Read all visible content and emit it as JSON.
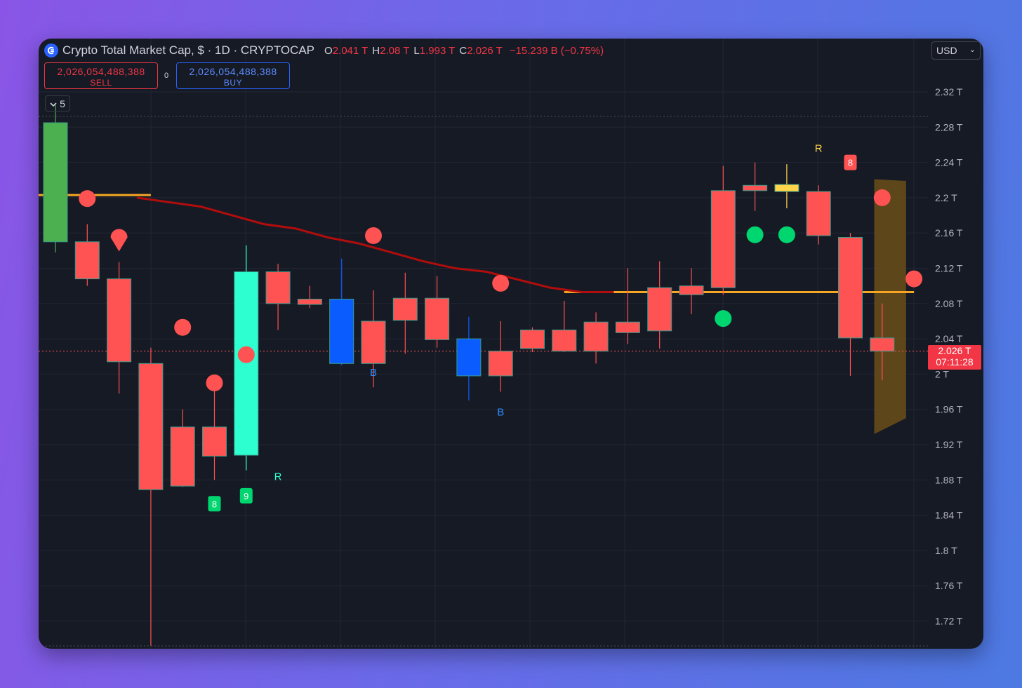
{
  "header": {
    "title": "Crypto Total Market Cap, $ · 1D · CRYPTOCAP",
    "ohlc": [
      {
        "key": "O",
        "value": "2.041 T"
      },
      {
        "key": "H",
        "value": "2.08 T"
      },
      {
        "key": "L",
        "value": "1.993 T"
      },
      {
        "key": "C",
        "value": "2.026 T"
      }
    ],
    "change": "−15.239 B (−0.75%)"
  },
  "currency": "USD",
  "trade": {
    "sell_price": "2,026,054,488,388",
    "sell_label": "SELL",
    "spread": "0",
    "buy_price": "2,026,054,488,388",
    "buy_label": "BUY"
  },
  "indicator_toggle": "5",
  "last_price": {
    "value": "2.026 T",
    "countdown": "07:11:28"
  },
  "colors": {
    "background": "#161a25",
    "bear": "#ff5252",
    "bull_green": "#4caf50",
    "bull_cyan": "#2effd1",
    "blue_candle": "#0a5cff",
    "ma_line": "#b10d0d",
    "level_line": "#f5a623",
    "marker_red": "#ff5252",
    "marker_green": "#00d66f",
    "signal_blue": "#2a8dff",
    "signal_yellow": "#ffd54a",
    "forecast": "#6b4f1a"
  },
  "chart_data": {
    "type": "candlestick",
    "unit": "T",
    "ylim": [
      1.69,
      2.345
    ],
    "y_ticks": [
      "2.32 T",
      "2.28 T",
      "2.24 T",
      "2.2 T",
      "2.16 T",
      "2.12 T",
      "2.08 T",
      "2.04 T",
      "2 T",
      "1.96 T",
      "1.92 T",
      "1.88 T",
      "1.84 T",
      "1.8 T",
      "1.76 T",
      "1.72 T"
    ],
    "y_tick_values": [
      2.32,
      2.28,
      2.24,
      2.2,
      2.16,
      2.12,
      2.08,
      2.04,
      2.0,
      1.96,
      1.92,
      1.88,
      1.84,
      1.8,
      1.76,
      1.72
    ],
    "candles": [
      {
        "o": 2.15,
        "h": 2.305,
        "l": 2.138,
        "c": 2.285,
        "color": "green"
      },
      {
        "o": 2.15,
        "h": 2.17,
        "l": 2.1,
        "c": 2.108,
        "color": "red"
      },
      {
        "o": 2.108,
        "h": 2.127,
        "l": 1.978,
        "c": 2.014,
        "color": "red"
      },
      {
        "o": 2.012,
        "h": 2.03,
        "l": 1.692,
        "c": 1.869,
        "color": "red"
      },
      {
        "o": 1.94,
        "h": 1.96,
        "l": 1.872,
        "c": 1.873,
        "color": "red"
      },
      {
        "o": 1.94,
        "h": 1.99,
        "l": 1.88,
        "c": 1.907,
        "color": "red"
      },
      {
        "o": 1.908,
        "h": 2.146,
        "l": 1.891,
        "c": 2.116,
        "color": "cyan"
      },
      {
        "o": 2.116,
        "h": 2.125,
        "l": 2.05,
        "c": 2.08,
        "color": "red"
      },
      {
        "o": 2.085,
        "h": 2.1,
        "l": 2.075,
        "c": 2.079,
        "color": "red"
      },
      {
        "o": 2.085,
        "h": 2.131,
        "l": 2.01,
        "c": 2.012,
        "color": "blue"
      },
      {
        "o": 2.06,
        "h": 2.095,
        "l": 1.985,
        "c": 2.012,
        "color": "red"
      },
      {
        "o": 2.086,
        "h": 2.115,
        "l": 2.023,
        "c": 2.061,
        "color": "red"
      },
      {
        "o": 2.086,
        "h": 2.111,
        "l": 2.03,
        "c": 2.039,
        "color": "red"
      },
      {
        "o": 2.04,
        "h": 2.065,
        "l": 1.97,
        "c": 1.998,
        "color": "blue"
      },
      {
        "o": 2.026,
        "h": 2.06,
        "l": 1.98,
        "c": 1.998,
        "color": "red"
      },
      {
        "o": 2.05,
        "h": 2.053,
        "l": 2.025,
        "c": 2.029,
        "color": "red"
      },
      {
        "o": 2.05,
        "h": 2.083,
        "l": 2.025,
        "c": 2.026,
        "color": "red"
      },
      {
        "o": 2.059,
        "h": 2.07,
        "l": 2.012,
        "c": 2.026,
        "color": "red"
      },
      {
        "o": 2.059,
        "h": 2.12,
        "l": 2.034,
        "c": 2.047,
        "color": "red"
      },
      {
        "o": 2.098,
        "h": 2.128,
        "l": 2.029,
        "c": 2.049,
        "color": "red"
      },
      {
        "o": 2.1,
        "h": 2.12,
        "l": 2.068,
        "c": 2.09,
        "color": "red"
      },
      {
        "o": 2.208,
        "h": 2.236,
        "l": 2.09,
        "c": 2.098,
        "color": "red"
      },
      {
        "o": 2.214,
        "h": 2.24,
        "l": 2.185,
        "c": 2.208,
        "color": "red"
      },
      {
        "o": 2.215,
        "h": 2.238,
        "l": 2.188,
        "c": 2.207,
        "color": "yellow"
      },
      {
        "o": 2.207,
        "h": 2.214,
        "l": 2.147,
        "c": 2.157,
        "color": "red"
      },
      {
        "o": 2.155,
        "h": 2.16,
        "l": 1.998,
        "c": 2.041,
        "color": "red"
      },
      {
        "o": 2.041,
        "h": 2.08,
        "l": 1.993,
        "c": 2.026,
        "color": "red"
      }
    ],
    "ma_line": [
      [
        3,
        2.2
      ],
      [
        4,
        2.195
      ],
      [
        5,
        2.19
      ],
      [
        6,
        2.18
      ],
      [
        7,
        2.17
      ],
      [
        8,
        2.165
      ],
      [
        9,
        2.155
      ],
      [
        10,
        2.148
      ],
      [
        11,
        2.138
      ],
      [
        12,
        2.128
      ],
      [
        13,
        2.12
      ],
      [
        14,
        2.116
      ],
      [
        15,
        2.107
      ],
      [
        16,
        2.098
      ],
      [
        17,
        2.093
      ],
      [
        18,
        2.093
      ]
    ],
    "level_lines": [
      {
        "value": 2.203,
        "from": 0,
        "to": 3
      },
      {
        "value": 2.093,
        "from": 16,
        "to": 27
      }
    ],
    "markers": [
      {
        "i": 1,
        "v": 2.199,
        "type": "dot",
        "color": "red"
      },
      {
        "i": 2,
        "v": 2.155,
        "type": "pin",
        "color": "red"
      },
      {
        "i": 4,
        "v": 2.053,
        "type": "dot",
        "color": "red"
      },
      {
        "i": 5,
        "v": 1.99,
        "type": "dot",
        "color": "red"
      },
      {
        "i": 6,
        "v": 2.022,
        "type": "dot",
        "color": "red"
      },
      {
        "i": 10,
        "v": 2.157,
        "type": "dot",
        "color": "red"
      },
      {
        "i": 14,
        "v": 2.103,
        "type": "dot",
        "color": "red"
      },
      {
        "i": 22,
        "v": 2.158,
        "type": "dot",
        "color": "green"
      },
      {
        "i": 23,
        "v": 2.158,
        "type": "dot",
        "color": "green"
      },
      {
        "i": 21,
        "v": 2.063,
        "type": "dot",
        "color": "green"
      },
      {
        "i": 26,
        "v": 2.2,
        "type": "dot",
        "color": "red"
      },
      {
        "i": 27,
        "v": 2.108,
        "type": "dot",
        "color": "red"
      }
    ],
    "signals": [
      {
        "i": 7,
        "v": 1.88,
        "text": "R",
        "color": "cyan"
      },
      {
        "i": 10,
        "v": 1.998,
        "text": "B",
        "color": "blue"
      },
      {
        "i": 14,
        "v": 1.953,
        "text": "B",
        "color": "blue"
      },
      {
        "i": 24,
        "v": 2.252,
        "text": "R",
        "color": "yellow"
      }
    ],
    "count_badges": [
      {
        "i": 5,
        "v": 1.853,
        "text": "8",
        "color": "green"
      },
      {
        "i": 6,
        "v": 1.862,
        "text": "9",
        "color": "green"
      },
      {
        "i": 25,
        "v": 2.24,
        "text": "8",
        "color": "red"
      }
    ],
    "forecast_band": {
      "i_from": 25.75,
      "i_to": 26.75,
      "top_from": 2.221,
      "top_to": 2.219,
      "bottom_from": 1.932,
      "bottom_to": 1.95
    },
    "last_price_value": 2.026
  }
}
